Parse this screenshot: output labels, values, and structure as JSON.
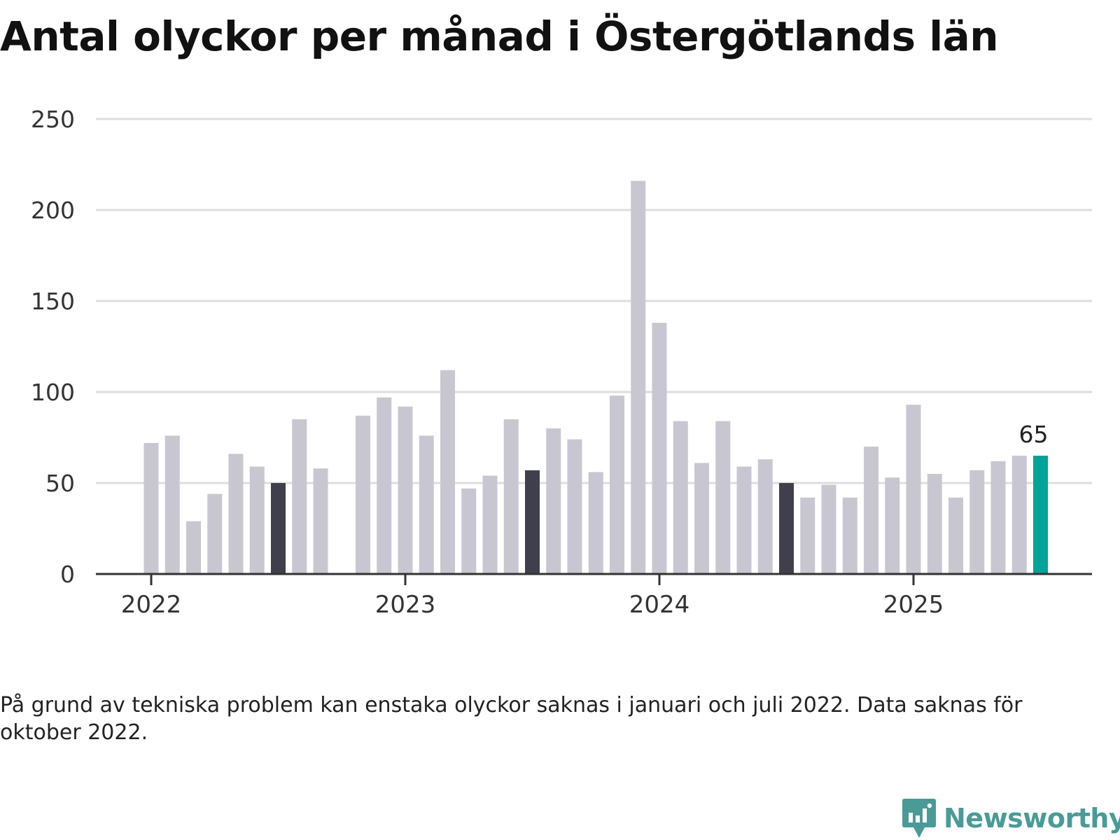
{
  "title": "Antal olyckor per månad i Östergötlands län",
  "note": "På grund av tekniska problem kan enstaka olyckor saknas i januari och juli 2022. Data saknas för oktober 2022.",
  "logo": {
    "text": "Newsworthy",
    "icon": "bar-chart-speech-bubble-icon"
  },
  "colors": {
    "default": "#c8c7d1",
    "july": "#403f4c",
    "latest": "#00a397",
    "grid": "#dedede",
    "axis": "#333333",
    "logo": "#4a9b98"
  },
  "chart_data": {
    "type": "bar",
    "title": "Antal olyckor per månad i Östergötlands län",
    "xlabel": "",
    "ylabel": "",
    "ylim": [
      0,
      250
    ],
    "yticks": [
      0,
      50,
      100,
      150,
      200,
      250
    ],
    "grid": true,
    "x_ticks": [
      {
        "label": "2022",
        "date": "2022-01"
      },
      {
        "label": "2023",
        "date": "2023-01"
      },
      {
        "label": "2024",
        "date": "2024-01"
      },
      {
        "label": "2025",
        "date": "2025-01"
      }
    ],
    "highlight_label": {
      "date": "2025-07",
      "text": "65"
    },
    "points": [
      {
        "date": "2022-01",
        "value": 72
      },
      {
        "date": "2022-02",
        "value": 76
      },
      {
        "date": "2022-03",
        "value": 29
      },
      {
        "date": "2022-04",
        "value": 44
      },
      {
        "date": "2022-05",
        "value": 66
      },
      {
        "date": "2022-06",
        "value": 59
      },
      {
        "date": "2022-07",
        "value": 50,
        "highlight": "july"
      },
      {
        "date": "2022-08",
        "value": 85
      },
      {
        "date": "2022-09",
        "value": 58
      },
      {
        "date": "2022-11",
        "value": 87
      },
      {
        "date": "2022-12",
        "value": 97
      },
      {
        "date": "2023-01",
        "value": 92
      },
      {
        "date": "2023-02",
        "value": 76
      },
      {
        "date": "2023-03",
        "value": 112
      },
      {
        "date": "2023-04",
        "value": 47
      },
      {
        "date": "2023-05",
        "value": 54
      },
      {
        "date": "2023-06",
        "value": 85
      },
      {
        "date": "2023-07",
        "value": 57,
        "highlight": "july"
      },
      {
        "date": "2023-08",
        "value": 80
      },
      {
        "date": "2023-09",
        "value": 74
      },
      {
        "date": "2023-10",
        "value": 56
      },
      {
        "date": "2023-11",
        "value": 98
      },
      {
        "date": "2023-12",
        "value": 216
      },
      {
        "date": "2024-01",
        "value": 138
      },
      {
        "date": "2024-02",
        "value": 84
      },
      {
        "date": "2024-03",
        "value": 61
      },
      {
        "date": "2024-04",
        "value": 84
      },
      {
        "date": "2024-05",
        "value": 59
      },
      {
        "date": "2024-06",
        "value": 63
      },
      {
        "date": "2024-07",
        "value": 50,
        "highlight": "july"
      },
      {
        "date": "2024-08",
        "value": 42
      },
      {
        "date": "2024-09",
        "value": 49
      },
      {
        "date": "2024-10",
        "value": 42
      },
      {
        "date": "2024-11",
        "value": 70
      },
      {
        "date": "2024-12",
        "value": 53
      },
      {
        "date": "2025-01",
        "value": 93
      },
      {
        "date": "2025-02",
        "value": 55
      },
      {
        "date": "2025-03",
        "value": 42
      },
      {
        "date": "2025-04",
        "value": 57
      },
      {
        "date": "2025-05",
        "value": 62
      },
      {
        "date": "2025-06",
        "value": 65
      },
      {
        "date": "2025-07",
        "value": 65,
        "highlight": "latest"
      }
    ]
  }
}
